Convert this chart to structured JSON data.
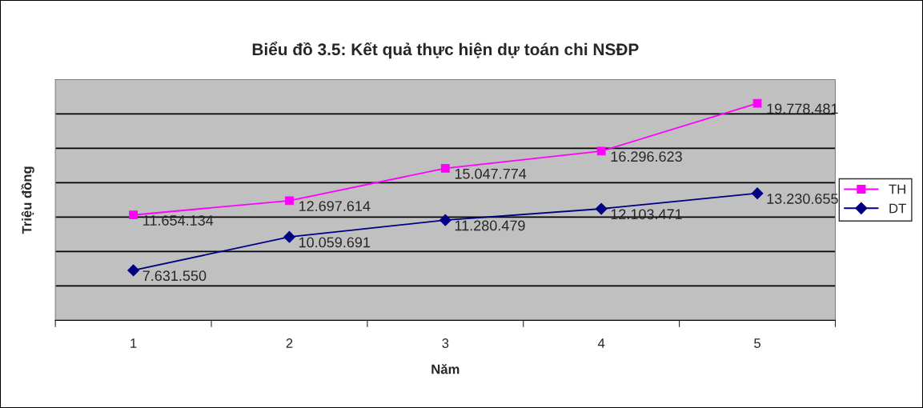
{
  "chart_data": {
    "type": "line",
    "title": "Biểu đồ 3.5: Kết quả thực hiện dự toán chi NSĐP",
    "xlabel": "Năm",
    "ylabel": "Triệu đồng",
    "categories": [
      "1",
      "2",
      "3",
      "4",
      "5"
    ],
    "series": [
      {
        "name": "TH",
        "color": "#ff00ff",
        "marker": "square",
        "values": [
          11654134,
          12697614,
          15047774,
          16296623,
          19778481
        ],
        "value_labels": [
          "11.654.134",
          "12.697.614",
          "15.047.774",
          "16.296.623",
          "19.778.481"
        ]
      },
      {
        "name": "DT",
        "color": "#000080",
        "marker": "diamond",
        "values": [
          7631550,
          10059691,
          11280479,
          12103471,
          13230655
        ],
        "value_labels": [
          "7.631.550",
          "10.059.691",
          "11.280.479",
          "12.103.471",
          "13.230.655"
        ]
      }
    ],
    "ylim": [
      4000000,
      21500000
    ],
    "yticks": [
      {
        "value": 6500000,
        "label": null
      },
      {
        "value": 9000000,
        "label": null
      },
      {
        "value": 11500000,
        "label": null
      },
      {
        "value": 14000000,
        "label": null
      },
      {
        "value": 16500000,
        "label": null
      },
      {
        "value": 19000000,
        "label": null
      }
    ],
    "tick_labels": "x",
    "grid": "y",
    "legend": "right"
  }
}
